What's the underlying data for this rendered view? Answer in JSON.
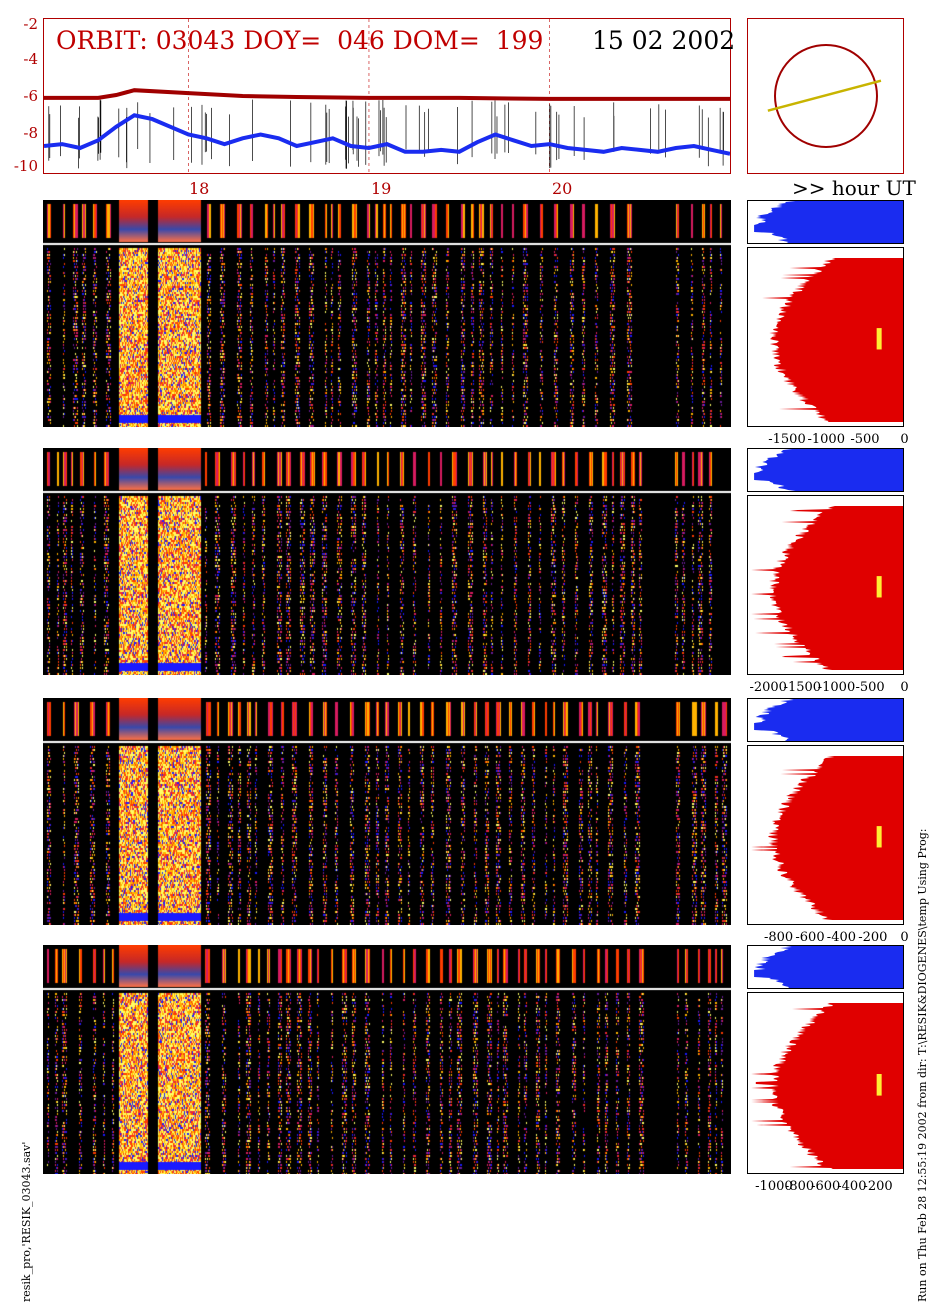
{
  "header": {
    "title": "ORBIT: 03043 DOY=  046 DOM=  199",
    "date": "15 02 2002",
    "axis_unit": ">> hour UT"
  },
  "footer": {
    "left_note": "resik_pro,'RESIK_03043.sav'",
    "right_note": "Run on Thu Feb 28 12:55:19 2002  from dir: T:\\RESIK&DIOGENES\\temp Using Prog:"
  },
  "colors": {
    "frame_red": "#b00000",
    "title_red": "#c00000",
    "curve_darkred": "#a00000",
    "curve_blue": "#1a2cf0",
    "histogram_red": "#e00000",
    "histogram_blue": "#1a2cf0",
    "orbit_line": "#c8b400",
    "marker_yellow": "#ffee33"
  },
  "chart_data": [
    {
      "type": "line",
      "ylim": [
        -10,
        -2
      ],
      "yticks": [
        "-2",
        "-4",
        "-6",
        "-8",
        "-10"
      ],
      "xlim": [
        17.2,
        21.0
      ],
      "hour_marks": [
        "18",
        "19",
        "20"
      ],
      "hour_values": [
        18,
        19,
        20
      ],
      "series": [
        {
          "x": [
            17.2,
            17.5,
            17.6,
            17.7,
            18.0,
            18.3,
            18.6,
            19.0,
            19.5,
            20.0,
            20.5,
            21.0
          ],
          "y": [
            -6.1,
            -6.1,
            -5.95,
            -5.7,
            -5.85,
            -6.0,
            -6.05,
            -6.1,
            -6.1,
            -6.15,
            -6.15,
            -6.15
          ]
        },
        {
          "x": [
            17.2,
            17.3,
            17.4,
            17.5,
            17.6,
            17.7,
            17.8,
            17.9,
            18.0,
            18.1,
            18.2,
            18.3,
            18.4,
            18.5,
            18.6,
            18.7,
            18.8,
            18.9,
            19.0,
            19.1,
            19.2,
            19.3,
            19.4,
            19.5,
            19.6,
            19.7,
            19.8,
            19.9,
            20.0,
            20.1,
            20.2,
            20.3,
            20.4,
            20.5,
            20.6,
            20.7,
            20.8,
            20.9,
            21.0
          ],
          "y": [
            -8.6,
            -8.5,
            -8.7,
            -8.3,
            -7.6,
            -7.0,
            -7.2,
            -7.6,
            -8.0,
            -8.2,
            -8.5,
            -8.2,
            -8.0,
            -8.2,
            -8.6,
            -8.4,
            -8.2,
            -8.6,
            -8.7,
            -8.5,
            -8.9,
            -8.9,
            -8.8,
            -8.9,
            -8.4,
            -8.0,
            -8.3,
            -8.6,
            -8.5,
            -8.7,
            -8.8,
            -8.9,
            -8.7,
            -8.8,
            -8.9,
            -8.7,
            -8.6,
            -8.8,
            -9.0
          ]
        }
      ]
    },
    {
      "type": "pie",
      "note": "orbit geometry",
      "orbit_line": {
        "from": [
          -0.95,
          -0.48
        ],
        "to": [
          0.98,
          0.25
        ]
      }
    },
    {
      "type": "heatmap",
      "panels": [
        {
          "side_axis": {
            "xlim": [
              -2000,
              0
            ],
            "ticks": [
              "-1500",
              "-1000",
              "-500",
              "0"
            ],
            "tick_values": [
              -1500,
              -1000,
              -500,
              0
            ]
          }
        },
        {
          "side_axis": {
            "xlim": [
              -2300,
              0
            ],
            "ticks": [
              "-2000",
              "-1500",
              "-1000",
              "-500",
              "0"
            ],
            "tick_values": [
              -2000,
              -1500,
              -1000,
              -500,
              0
            ]
          }
        },
        {
          "side_axis": {
            "xlim": [
              -1000,
              0
            ],
            "ticks": [
              "-800",
              "-600",
              "-400",
              "-200",
              "0"
            ],
            "tick_values": [
              -800,
              -600,
              -400,
              -200,
              0
            ]
          }
        },
        {
          "side_axis": {
            "xlim": [
              -1200,
              0
            ],
            "ticks": [
              "-1000",
              "-800",
              "-600",
              "-400",
              "-200"
            ],
            "tick_values": [
              -1000,
              -800,
              -600,
              -400,
              -200
            ]
          }
        }
      ]
    }
  ]
}
